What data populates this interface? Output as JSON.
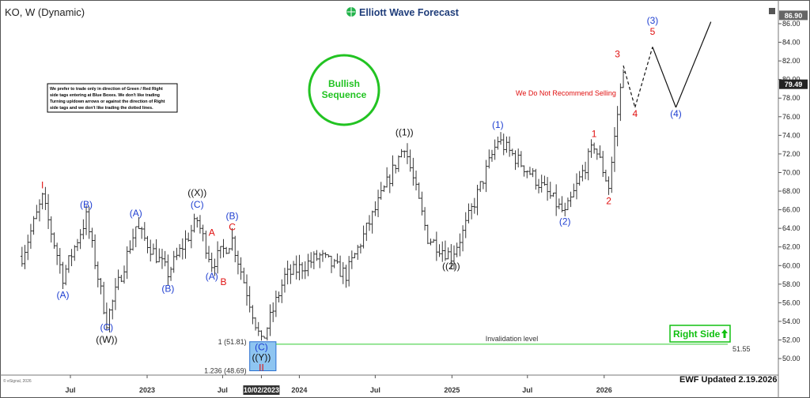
{
  "header": {
    "symbol": "KO, W (Dynamic)",
    "brand": "Elliott Wave Forecast"
  },
  "note_box": {
    "lines": [
      "We prefer to trade only in direction of Green / Red Right",
      "side tags entering at Blue Boxes. We don't like trading",
      "Turning up/down arrows or against the direction of Right",
      "side tags and we don't like trading the dotted lines."
    ]
  },
  "bullish_circle": {
    "line1": "Bullish",
    "line2": "Sequence",
    "color": "#22c322"
  },
  "recommend_text": "We Do Not Recommend Selling",
  "invalidation": {
    "label": "Invalidation level",
    "value_label": "51.55",
    "price": 51.55
  },
  "blue_box": {
    "upper_label": "1 (51.81)",
    "lower_label": "1.236 (48.69)",
    "upper": 51.81,
    "lower": 48.69
  },
  "right_side": {
    "label": "Right Side",
    "color": "#10c010"
  },
  "updated": "EWF Updated 2.19.2026",
  "footer": {
    "copyright": "© eSignal, 2026"
  },
  "price_badges": {
    "last": "79.49",
    "high": "86.90"
  },
  "colors": {
    "blue": "#1f3fd1",
    "red": "#e01010",
    "black": "#111111",
    "green_line": "#33cc33",
    "box_fill": "#8ec5f1",
    "box_stroke": "#2a6fd0"
  },
  "chart_data": {
    "type": "ohlc",
    "interval": "weekly",
    "ylim": [
      48.5,
      87.5
    ],
    "yticks": [
      50,
      52,
      54,
      56,
      58,
      60,
      62,
      64,
      66,
      68,
      70,
      72,
      74,
      76,
      78,
      80,
      82,
      84,
      86
    ],
    "xticks": [
      {
        "label": "Jul",
        "date": "2022-07-01"
      },
      {
        "label": "2023",
        "date": "2023-01-01"
      },
      {
        "label": "Jul",
        "date": "2023-07-01"
      },
      {
        "label": "10/02/2023",
        "date": "2023-10-02"
      },
      {
        "label": "2024",
        "date": "2024-01-01"
      },
      {
        "label": "Jul",
        "date": "2024-07-01"
      },
      {
        "label": "2025",
        "date": "2025-01-01"
      },
      {
        "label": "Jul",
        "date": "2025-07-01"
      },
      {
        "label": "2026",
        "date": "2026-01-01"
      }
    ],
    "pivots": [
      {
        "date": "2022-03-07",
        "price": 61.0
      },
      {
        "date": "2022-04-25",
        "price": 67.2
      },
      {
        "date": "2022-06-13",
        "price": 58.8
      },
      {
        "date": "2022-08-08",
        "price": 65.2
      },
      {
        "date": "2022-09-26",
        "price": 54.0
      },
      {
        "date": "2022-12-05",
        "price": 64.2
      },
      {
        "date": "2023-02-20",
        "price": 59.2
      },
      {
        "date": "2023-05-01",
        "price": 64.9
      },
      {
        "date": "2023-06-05",
        "price": 60.2
      },
      {
        "date": "2023-07-24",
        "price": 62.8
      },
      {
        "date": "2023-10-02",
        "price": 51.6
      },
      {
        "date": "2023-11-27",
        "price": 58.8
      },
      {
        "date": "2024-02-19",
        "price": 61.0
      },
      {
        "date": "2024-04-22",
        "price": 59.0
      },
      {
        "date": "2024-09-09",
        "price": 73.0
      },
      {
        "date": "2024-11-04",
        "price": 63.0
      },
      {
        "date": "2024-12-30",
        "price": 61.0
      },
      {
        "date": "2025-01-27",
        "price": 63.5
      },
      {
        "date": "2025-04-21",
        "price": 73.5
      },
      {
        "date": "2025-07-07",
        "price": 70.0
      },
      {
        "date": "2025-09-29",
        "price": 65.5
      },
      {
        "date": "2025-12-08",
        "price": 73.0
      },
      {
        "date": "2026-01-12",
        "price": 68.5
      },
      {
        "date": "2026-02-16",
        "price": 81.5
      }
    ],
    "wave_labels": [
      {
        "text": "I",
        "date": "2022-04-25",
        "price": 68.3,
        "color": "red"
      },
      {
        "text": "(A)",
        "date": "2022-06-13",
        "price": 56.5,
        "color": "blue"
      },
      {
        "text": "(B)",
        "date": "2022-08-08",
        "price": 66.2,
        "color": "blue"
      },
      {
        "text": "(C)",
        "date": "2022-09-26",
        "price": 53.0,
        "color": "blue"
      },
      {
        "text": "((W))",
        "date": "2022-09-26",
        "price": 51.7,
        "color": "black"
      },
      {
        "text": "(A)",
        "date": "2022-12-05",
        "price": 65.3,
        "color": "blue"
      },
      {
        "text": "(B)",
        "date": "2023-02-20",
        "price": 57.2,
        "color": "blue"
      },
      {
        "text": "((X))",
        "date": "2023-05-01",
        "price": 67.5,
        "color": "black"
      },
      {
        "text": "(C)",
        "date": "2023-05-01",
        "price": 66.2,
        "color": "blue"
      },
      {
        "text": "A",
        "date": "2023-06-05",
        "price": 63.2,
        "color": "red"
      },
      {
        "text": "(A)",
        "date": "2023-06-05",
        "price": 58.5,
        "color": "blue"
      },
      {
        "text": "(B)",
        "date": "2023-07-24",
        "price": 65.0,
        "color": "blue"
      },
      {
        "text": "C",
        "date": "2023-07-24",
        "price": 63.8,
        "color": "red"
      },
      {
        "text": "B",
        "date": "2023-07-03",
        "price": 57.9,
        "color": "red"
      },
      {
        "text": "(C)",
        "date": "2023-10-02",
        "price": 50.9,
        "color": "blue"
      },
      {
        "text": "((Y))",
        "date": "2023-10-02",
        "price": 49.8,
        "color": "black"
      },
      {
        "text": "II",
        "date": "2023-10-02",
        "price": 48.7,
        "color": "red"
      },
      {
        "text": "((1))",
        "date": "2024-09-09",
        "price": 74.0,
        "color": "black"
      },
      {
        "text": "((2))",
        "date": "2024-12-30",
        "price": 59.6,
        "color": "black"
      },
      {
        "text": "(1)",
        "date": "2025-04-21",
        "price": 74.8,
        "color": "blue"
      },
      {
        "text": "(2)",
        "date": "2025-09-29",
        "price": 64.4,
        "color": "blue"
      },
      {
        "text": "1",
        "date": "2025-12-08",
        "price": 73.8,
        "color": "red"
      },
      {
        "text": "2",
        "date": "2026-01-12",
        "price": 66.6,
        "color": "red"
      },
      {
        "text": "3",
        "date": "2026-02-02",
        "price": 82.4,
        "color": "red"
      },
      {
        "text": "4",
        "date": "2026-03-16",
        "price": 76.0,
        "color": "red"
      },
      {
        "text": "5",
        "date": "2026-04-27",
        "price": 84.8,
        "color": "red"
      },
      {
        "text": "(3)",
        "date": "2026-04-27",
        "price": 86.0,
        "color": "blue"
      },
      {
        "text": "(4)",
        "date": "2026-06-22",
        "price": 76.0,
        "color": "blue"
      }
    ],
    "projection": [
      {
        "date": "2026-02-16",
        "price": 81.5
      },
      {
        "date": "2026-03-16",
        "price": 77.0
      },
      {
        "date": "2026-04-27",
        "price": 83.5
      },
      {
        "date": "2026-06-22",
        "price": 77.0
      },
      {
        "date": "2026-09-14",
        "price": 86.2
      }
    ]
  }
}
